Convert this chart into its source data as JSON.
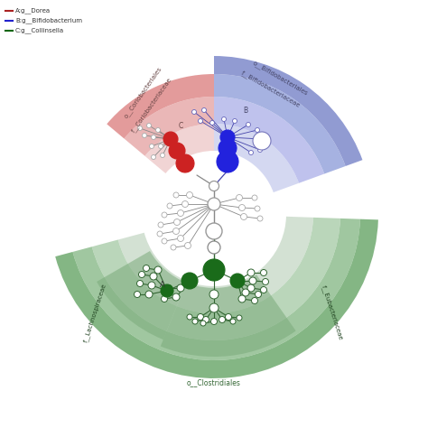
{
  "legend": [
    {
      "label": "A:g__Dorea",
      "color": "#aa2222"
    },
    {
      "label": "B:g__Bifidobacterium",
      "color": "#2222cc"
    },
    {
      "label": "C:g__Collinsella",
      "color": "#116611"
    }
  ],
  "bg_color": "#ffffff",
  "blue_sector": {
    "t1": 20,
    "t2": 90,
    "radii": [
      70,
      100,
      130,
      155,
      175
    ],
    "colors": [
      "#d0d4f0",
      "#b8bcec",
      "#9daade",
      "#8590ce"
    ]
  },
  "red_sector": {
    "t1": 90,
    "t2": 140,
    "radii": [
      70,
      100,
      130,
      155
    ],
    "colors": [
      "#f0d0d0",
      "#e8b0b0",
      "#e09090"
    ]
  },
  "green_sector": {
    "t1": 195,
    "t2": 358,
    "radii": [
      80,
      110,
      140,
      162,
      182
    ],
    "colors": [
      "#ccdccc",
      "#aecfae",
      "#8fbd8f",
      "#6faa6f"
    ]
  },
  "green_lach_sub": {
    "t1": 248,
    "t2": 305,
    "r_in": 82,
    "r_out": 158,
    "color": "#7aaa7a"
  },
  "green_eub_sub": {
    "t1": 210,
    "t2": 248,
    "r_in": 82,
    "r_out": 150,
    "color": "#7aaa7a"
  }
}
